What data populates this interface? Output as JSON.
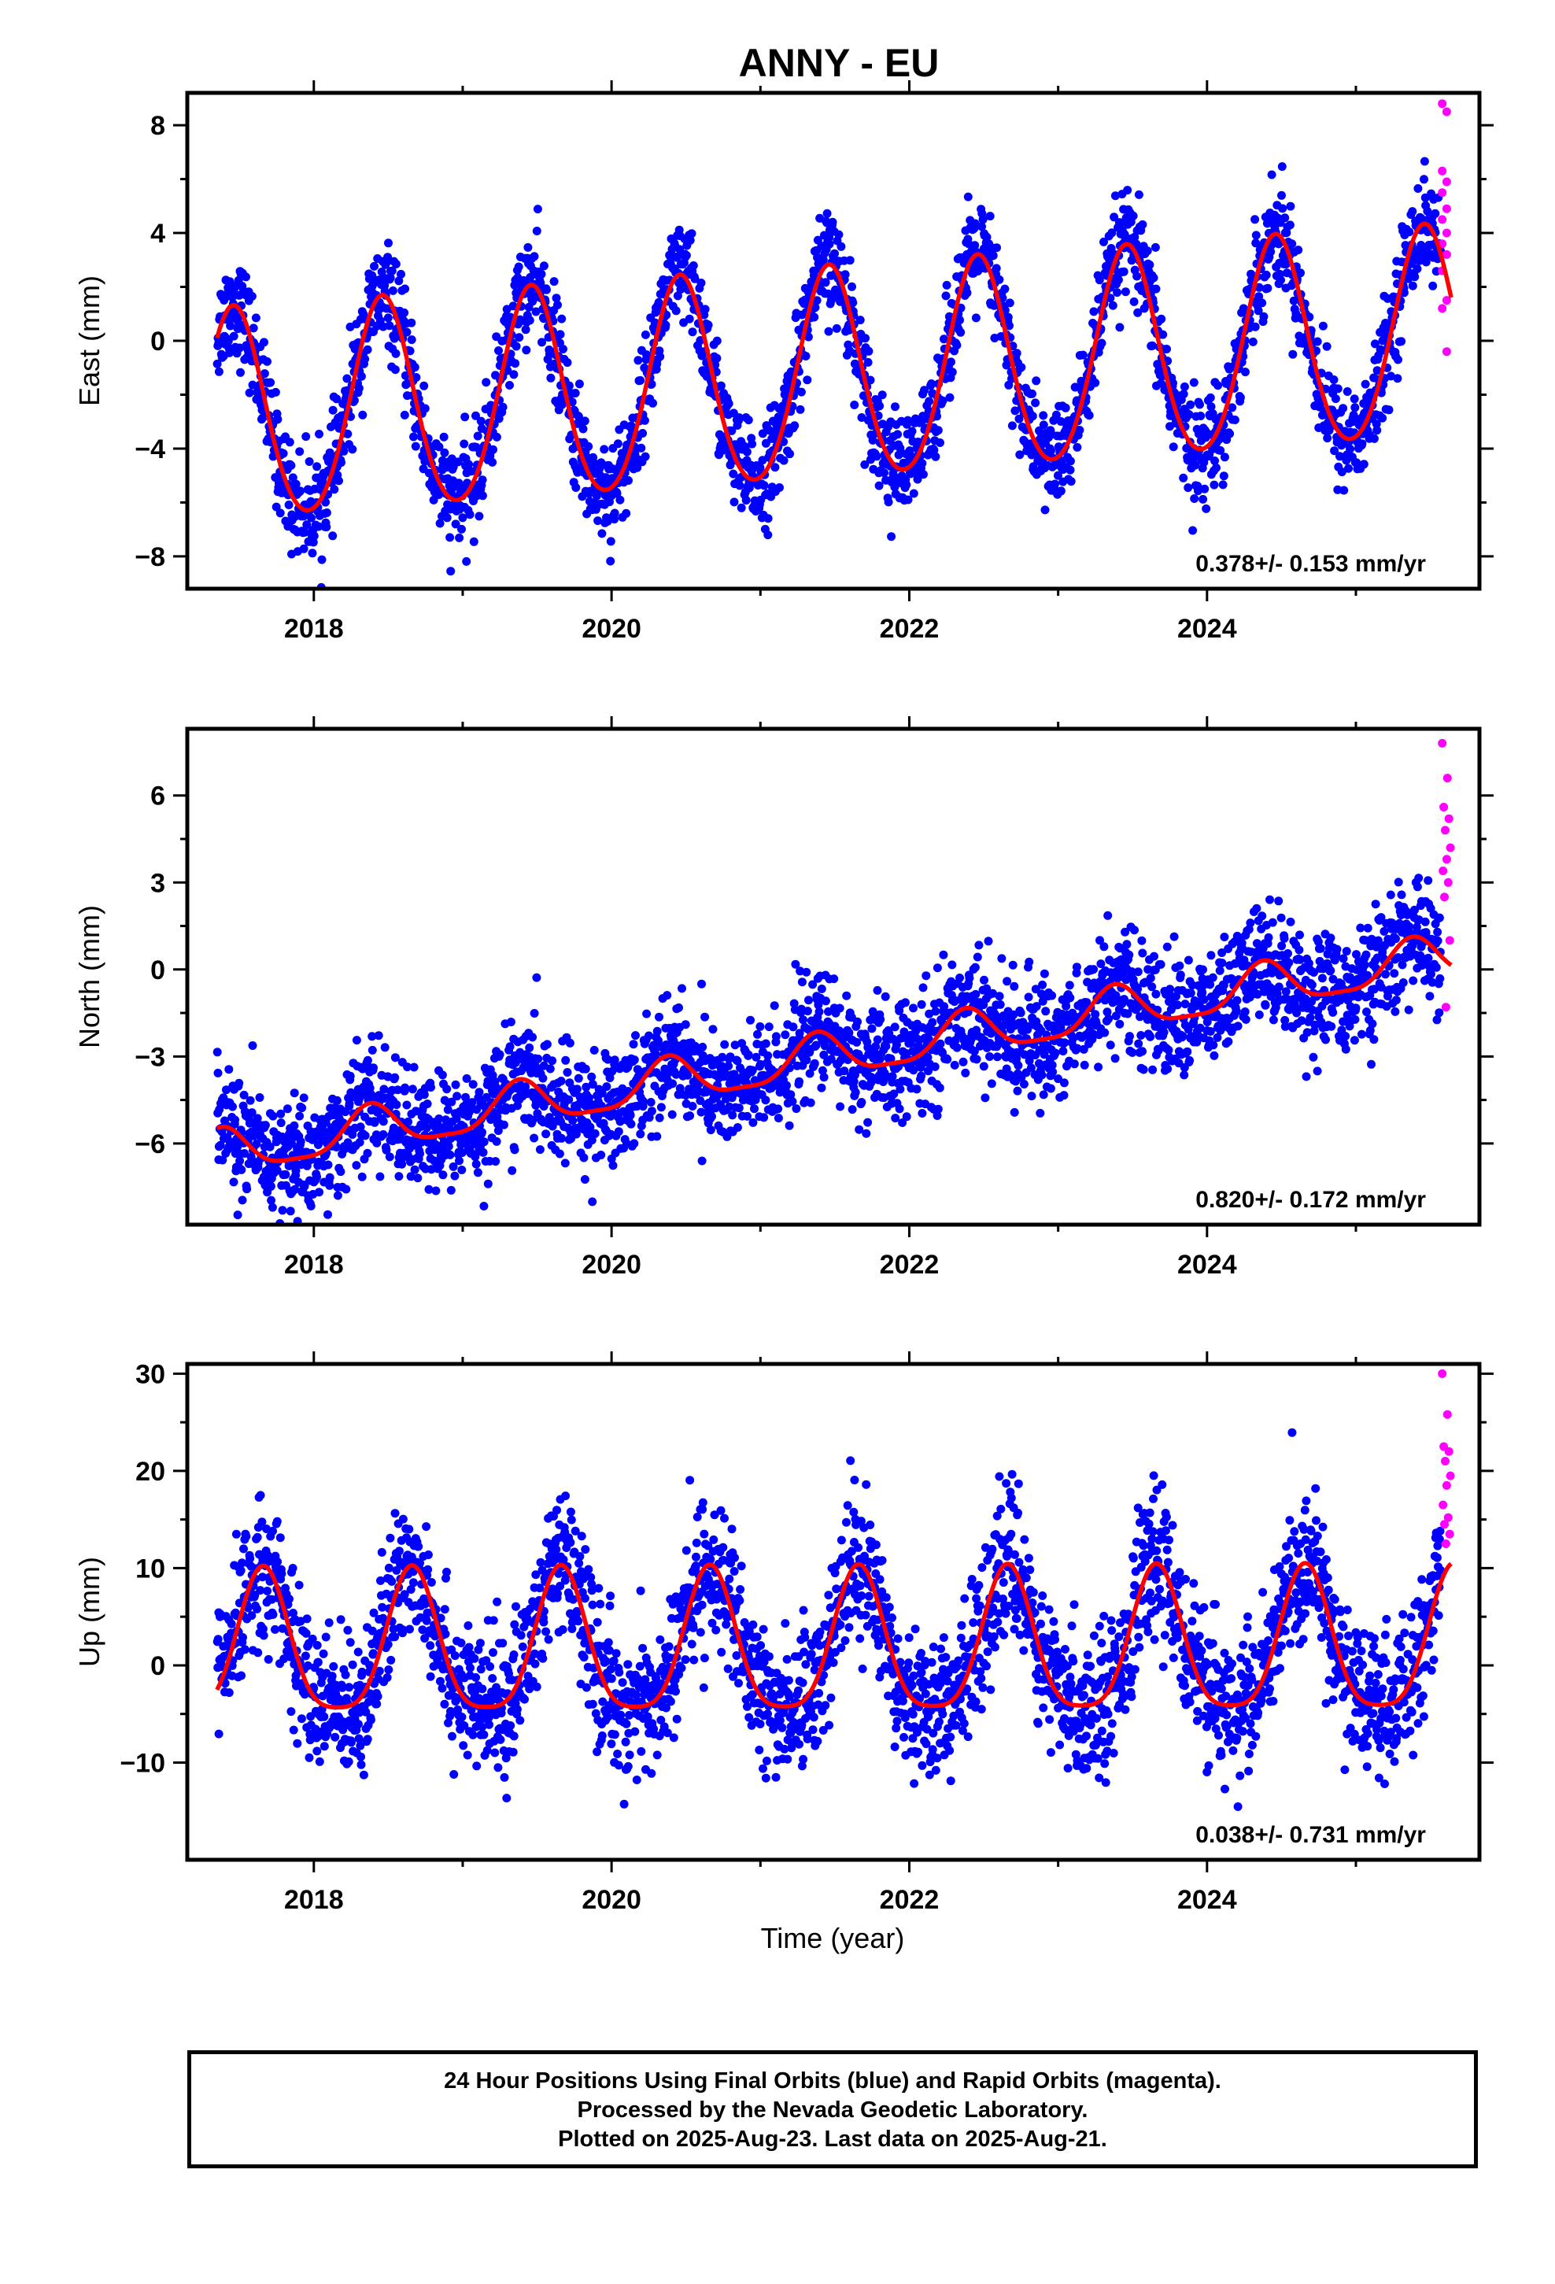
{
  "title": "ANNY - EU",
  "xlabel": "Time (year)",
  "colors": {
    "final": "#0000ff",
    "rapid": "#ff00ff",
    "model": "#ff0000",
    "axes": "#000000"
  },
  "footer": {
    "line1": "24 Hour Positions Using Final Orbits (blue) and Rapid Orbits (magenta).",
    "line2": "Processed by the Nevada Geodetic Laboratory.",
    "line3": "Plotted on 2025-Aug-23. Last data on 2025-Aug-21."
  },
  "chart_data": [
    {
      "type": "scatter",
      "component": "east",
      "ylabel": "East (mm)",
      "xlim": [
        2017.15,
        2025.83
      ],
      "ylim": [
        -9.2,
        9.2
      ],
      "xticks": [
        2018,
        2020,
        2022,
        2024
      ],
      "yticks": [
        -8,
        -4,
        0,
        4,
        8
      ],
      "rate_label": "0.378+/- 0.153 mm/yr",
      "data_span": [
        2017.35,
        2025.64
      ],
      "model": {
        "offset": -1.4,
        "trend_mm_per_yr": 0.378,
        "annual_amp": 3.9,
        "annual_peak_year_frac": 0.46,
        "semiannual_amp": 0.35
      },
      "series": [
        {
          "name": "Final Orbits",
          "color": "#0000ff",
          "noise_sd_mm": 0.95,
          "points_per_year": 330
        },
        {
          "name": "Rapid Orbits",
          "color": "#ff00ff",
          "x_range": [
            2025.58,
            2025.64
          ],
          "y": [
            8.8,
            8.5,
            6.3,
            5.9,
            5.5,
            4.9,
            4.5,
            4.0,
            3.6,
            3.2,
            2.6,
            1.5,
            1.2,
            -0.4
          ]
        }
      ],
      "fit": {
        "name": "Model",
        "color": "#ff0000"
      }
    },
    {
      "type": "scatter",
      "component": "north",
      "ylabel": "North (mm)",
      "xlim": [
        2017.15,
        2025.83
      ],
      "ylim": [
        -8.8,
        8.3
      ],
      "xticks": [
        2018,
        2020,
        2022,
        2024
      ],
      "yticks": [
        -6,
        -3,
        0,
        3,
        6
      ],
      "rate_label": "0.820+/- 0.172 mm/yr",
      "data_span": [
        2017.35,
        2025.64
      ],
      "model": {
        "offset": -3.0,
        "trend_mm_per_yr": 0.82,
        "annual_amp": 0.75,
        "annual_peak_year_frac": 0.38,
        "semiannual_amp": 0.2
      },
      "series": [
        {
          "name": "Final Orbits",
          "color": "#0000ff",
          "noise_sd_mm": 1.0,
          "points_per_year": 330
        },
        {
          "name": "Rapid Orbits",
          "color": "#ff00ff",
          "x_range": [
            2025.58,
            2025.64
          ],
          "y": [
            7.8,
            6.6,
            5.6,
            5.2,
            4.8,
            4.2,
            3.8,
            3.4,
            3.0,
            2.5,
            1.0,
            -1.3
          ]
        }
      ],
      "fit": {
        "name": "Model",
        "color": "#ff0000"
      }
    },
    {
      "type": "scatter",
      "component": "up",
      "ylabel": "Up (mm)",
      "xlim": [
        2017.15,
        2025.83
      ],
      "ylim": [
        -20,
        31
      ],
      "xticks": [
        2018,
        2020,
        2022,
        2024
      ],
      "yticks": [
        -10,
        0,
        10,
        20,
        30
      ],
      "rate_label": "0.038+/- 0.731 mm/yr",
      "data_span": [
        2017.35,
        2025.64
      ],
      "model": {
        "offset": 1.5,
        "trend_mm_per_yr": 0.038,
        "annual_amp": 7.3,
        "annual_peak_year_frac": 0.66,
        "semiannual_amp": 1.6
      },
      "series": [
        {
          "name": "Final Orbits",
          "color": "#0000ff",
          "noise_sd_mm": 3.6,
          "points_per_year": 330
        },
        {
          "name": "Rapid Orbits",
          "color": "#ff00ff",
          "x_range": [
            2025.58,
            2025.64
          ],
          "y": [
            30,
            25.8,
            22.5,
            22.0,
            21.0,
            19.5,
            18.5,
            16.5,
            15.2,
            14.5,
            13.5,
            12.5
          ]
        }
      ],
      "fit": {
        "name": "Model",
        "color": "#ff0000"
      }
    }
  ]
}
